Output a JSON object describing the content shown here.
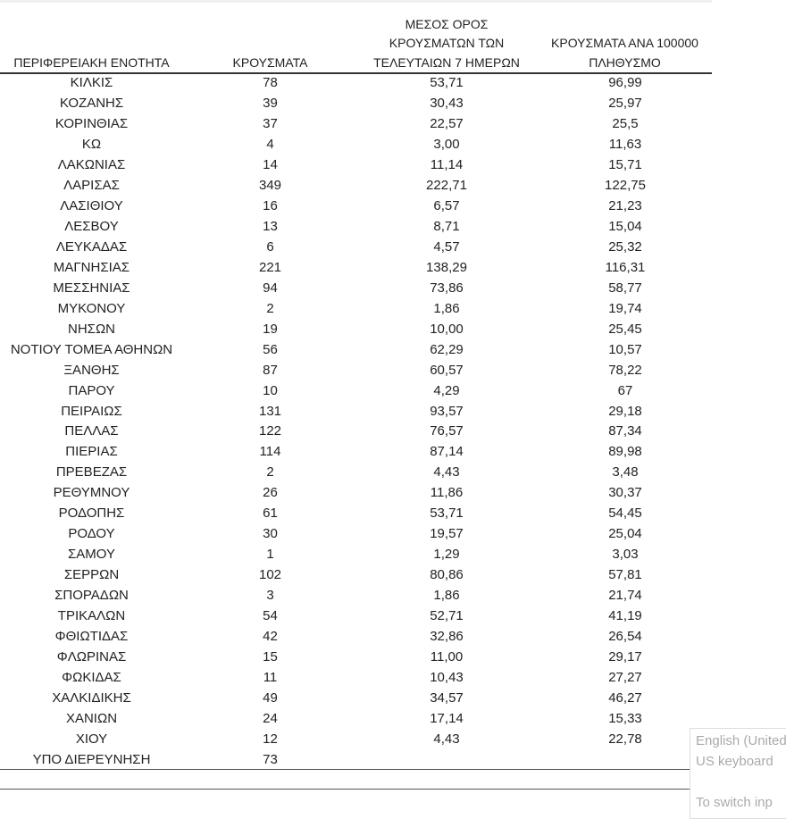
{
  "table": {
    "headers": [
      [
        "ΠΕΡΙΦΕΡΕΙΑΚΗ ΕΝΟΤΗΤΑ"
      ],
      [
        "ΚΡΟΥΣΜΑΤΑ"
      ],
      [
        "ΜΕΣΟΣ ΟΡΟΣ",
        "ΚΡΟΥΣΜΑΤΩΝ ΤΩΝ",
        "ΤΕΛΕΥΤΑΙΩΝ 7 ΗΜΕΡΩΝ"
      ],
      [
        "ΚΡΟΥΣΜΑΤΑ ΑΝΑ 100000",
        "ΠΛΗΘΥΣΜΟ"
      ]
    ],
    "rows": [
      [
        "ΚΙΛΚΙΣ",
        "78",
        "53,71",
        "96,99"
      ],
      [
        "ΚΟΖΑΝΗΣ",
        "39",
        "30,43",
        "25,97"
      ],
      [
        "ΚΟΡΙΝΘΙΑΣ",
        "37",
        "22,57",
        "25,5"
      ],
      [
        "ΚΩ",
        "4",
        "3,00",
        "11,63"
      ],
      [
        "ΛΑΚΩΝΙΑΣ",
        "14",
        "11,14",
        "15,71"
      ],
      [
        "ΛΑΡΙΣΑΣ",
        "349",
        "222,71",
        "122,75"
      ],
      [
        "ΛΑΣΙΘΙΟΥ",
        "16",
        "6,57",
        "21,23"
      ],
      [
        "ΛΕΣΒΟΥ",
        "13",
        "8,71",
        "15,04"
      ],
      [
        "ΛΕΥΚΑΔΑΣ",
        "6",
        "4,57",
        "25,32"
      ],
      [
        "ΜΑΓΝΗΣΙΑΣ",
        "221",
        "138,29",
        "116,31"
      ],
      [
        "ΜΕΣΣΗΝΙΑΣ",
        "94",
        "73,86",
        "58,77"
      ],
      [
        "ΜΥΚΟΝΟΥ",
        "2",
        "1,86",
        "19,74"
      ],
      [
        "ΝΗΣΩΝ",
        "19",
        "10,00",
        "25,45"
      ],
      [
        "ΝΟΤΙΟΥ ΤΟΜΕΑ ΑΘΗΝΩΝ",
        "56",
        "62,29",
        "10,57"
      ],
      [
        "ΞΑΝΘΗΣ",
        "87",
        "60,57",
        "78,22"
      ],
      [
        "ΠΑΡΟΥ",
        "10",
        "4,29",
        "67"
      ],
      [
        "ΠΕΙΡΑΙΩΣ",
        "131",
        "93,57",
        "29,18"
      ],
      [
        "ΠΕΛΛΑΣ",
        "122",
        "76,57",
        "87,34"
      ],
      [
        "ΠΙΕΡΙΑΣ",
        "114",
        "87,14",
        "89,98"
      ],
      [
        "ΠΡΕΒΕΖΑΣ",
        "2",
        "4,43",
        "3,48"
      ],
      [
        "ΡΕΘΥΜΝΟΥ",
        "26",
        "11,86",
        "30,37"
      ],
      [
        "ΡΟΔΟΠΗΣ",
        "61",
        "53,71",
        "54,45"
      ],
      [
        "ΡΟΔΟΥ",
        "30",
        "19,57",
        "25,04"
      ],
      [
        "ΣΑΜΟΥ",
        "1",
        "1,29",
        "3,03"
      ],
      [
        "ΣΕΡΡΩΝ",
        "102",
        "80,86",
        "57,81"
      ],
      [
        "ΣΠΟΡΑΔΩΝ",
        "3",
        "1,86",
        "21,74"
      ],
      [
        "ΤΡΙΚΑΛΩΝ",
        "54",
        "52,71",
        "41,19"
      ],
      [
        "ΦΘΙΩΤΙΔΑΣ",
        "42",
        "32,86",
        "26,54"
      ],
      [
        "ΦΛΩΡΙΝΑΣ",
        "15",
        "11,00",
        "29,17"
      ],
      [
        "ΦΩΚΙΔΑΣ",
        "11",
        "10,43",
        "27,27"
      ],
      [
        "ΧΑΛΚΙΔΙΚΗΣ",
        "49",
        "34,57",
        "46,27"
      ],
      [
        "ΧΑΝΙΩΝ",
        "24",
        "17,14",
        "15,33"
      ],
      [
        "ΧΙΟΥ",
        "12",
        "4,43",
        "22,78"
      ],
      [
        "ΥΠΟ ΔΙΕΡΕΥΝΗΣΗ",
        "73",
        "",
        ""
      ]
    ]
  },
  "tooltip": {
    "language": "English (United",
    "keyboard": "US keyboard",
    "hint": "To switch inp"
  }
}
